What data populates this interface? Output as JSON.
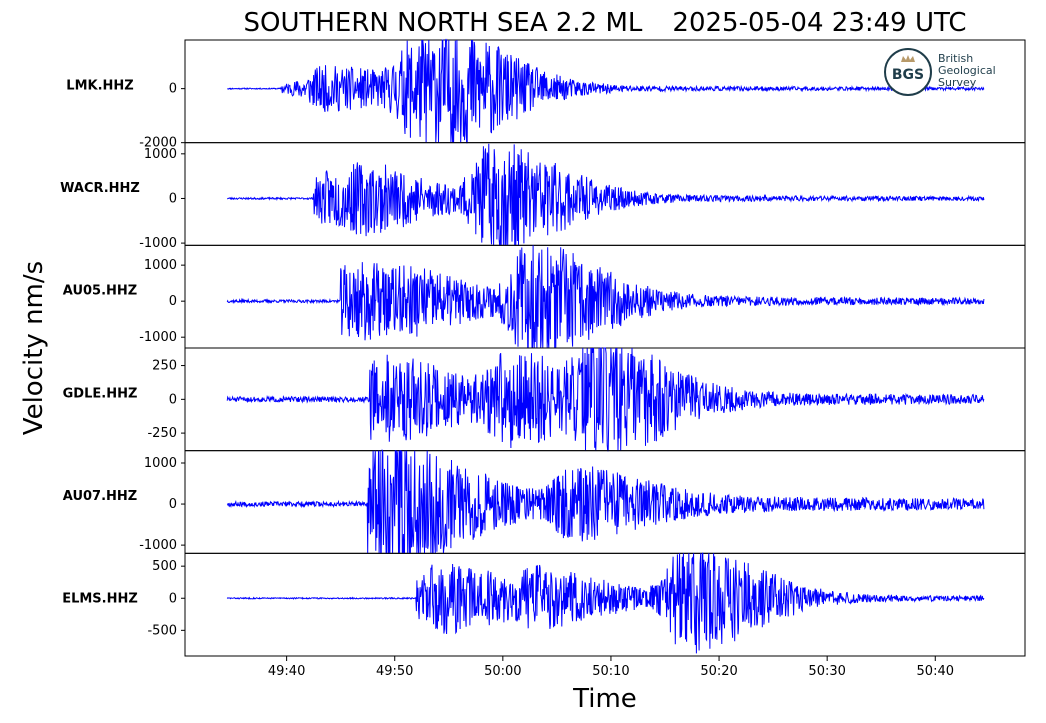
{
  "chart_data": {
    "type": "line",
    "title_region": "SOUTHERN NORTH SEA 2.2 ML",
    "title_time": "2025-05-04 23:49 UTC",
    "xlabel": "Time",
    "ylabel": "Velocity nm/s",
    "line_color": "#0000ff",
    "x_ticks": [
      "49:40",
      "49:50",
      "50:00",
      "50:10",
      "50:20",
      "50:30",
      "50:40"
    ],
    "x_tick_seconds": [
      40,
      50,
      60,
      70,
      80,
      90,
      100
    ],
    "x_start_seconds": 34.5,
    "x_end_seconds": 104.5,
    "x_axis_min_seconds": 30.6,
    "x_axis_max_seconds": 108.3,
    "logo": {
      "org_line1": "British",
      "org_line2": "Geological",
      "org_line3": "Survey",
      "mark": "BGS",
      "mark_color": "#1f3d4a",
      "crown_color": "#b89a6a"
    },
    "series": [
      {
        "name": "LMK.HHZ",
        "ylim": [
          -2000,
          1800
        ],
        "y_ticks": [
          0,
          -2000
        ],
        "y_tick_labels": [
          "0",
          "-2000"
        ],
        "noise": 20,
        "onsets": [
          5.0,
          12.5
        ],
        "decay": 18,
        "peaks": [
          {
            "t": 9.0,
            "amp": 700
          },
          {
            "t": 17.5,
            "amp": 1600
          },
          {
            "t": 21.0,
            "amp": 900
          }
        ],
        "p_arrival": 5.0,
        "seed": 11
      },
      {
        "name": "WACR.HHZ",
        "ylim": [
          -1050,
          1250
        ],
        "y_ticks": [
          1000,
          0,
          -1000
        ],
        "y_tick_labels": [
          "1000",
          "0",
          "-1000"
        ],
        "noise": 20,
        "peaks": [
          {
            "t": 9.5,
            "amp": 500
          },
          {
            "t": 13.0,
            "amp": 300
          },
          {
            "t": 24.5,
            "amp": 1150
          }
        ],
        "p_arrival": 8.0,
        "seed": 23
      },
      {
        "name": "AU05.HHZ",
        "ylim": [
          -1300,
          1550
        ],
        "y_ticks": [
          1000,
          0,
          -1000
        ],
        "y_tick_labels": [
          "1000",
          "0",
          "-1000"
        ],
        "noise": 40,
        "peaks": [
          {
            "t": 11.5,
            "amp": 900
          },
          {
            "t": 18.0,
            "amp": 250
          },
          {
            "t": 28.0,
            "amp": 1450
          }
        ],
        "p_arrival": 10.5,
        "seed": 37
      },
      {
        "name": "GDLE.HHZ",
        "ylim": [
          -380,
          380
        ],
        "y_ticks": [
          250,
          0,
          -250
        ],
        "y_tick_labels": [
          "250",
          "0",
          "-250"
        ],
        "noise": 20,
        "peaks": [
          {
            "t": 14.0,
            "amp": 260
          },
          {
            "t": 26.0,
            "amp": 300
          },
          {
            "t": 34.5,
            "amp": 350
          }
        ],
        "p_arrival": 13.2,
        "seed": 51
      },
      {
        "name": "AU07.HHZ",
        "ylim": [
          -1200,
          1300
        ],
        "y_ticks": [
          1000,
          0,
          -1000
        ],
        "y_tick_labels": [
          "1000",
          "0",
          "-1000"
        ],
        "noise": 60,
        "peaks": [
          {
            "t": 13.5,
            "amp": 1250
          },
          {
            "t": 16.0,
            "amp": 400
          },
          {
            "t": 32.0,
            "amp": 700
          }
        ],
        "p_arrival": 13.0,
        "seed": 67
      },
      {
        "name": "ELMS.HHZ",
        "ylim": [
          -900,
          700
        ],
        "y_ticks": [
          500,
          0,
          -500
        ],
        "y_tick_labels": [
          "500",
          "0",
          "-500"
        ],
        "noise": 10,
        "peaks": [
          {
            "t": 19.5,
            "amp": 450
          },
          {
            "t": 29.0,
            "amp": 300
          },
          {
            "t": 42.5,
            "amp": 820
          }
        ],
        "p_arrival": 17.5,
        "seed": 83
      }
    ]
  }
}
